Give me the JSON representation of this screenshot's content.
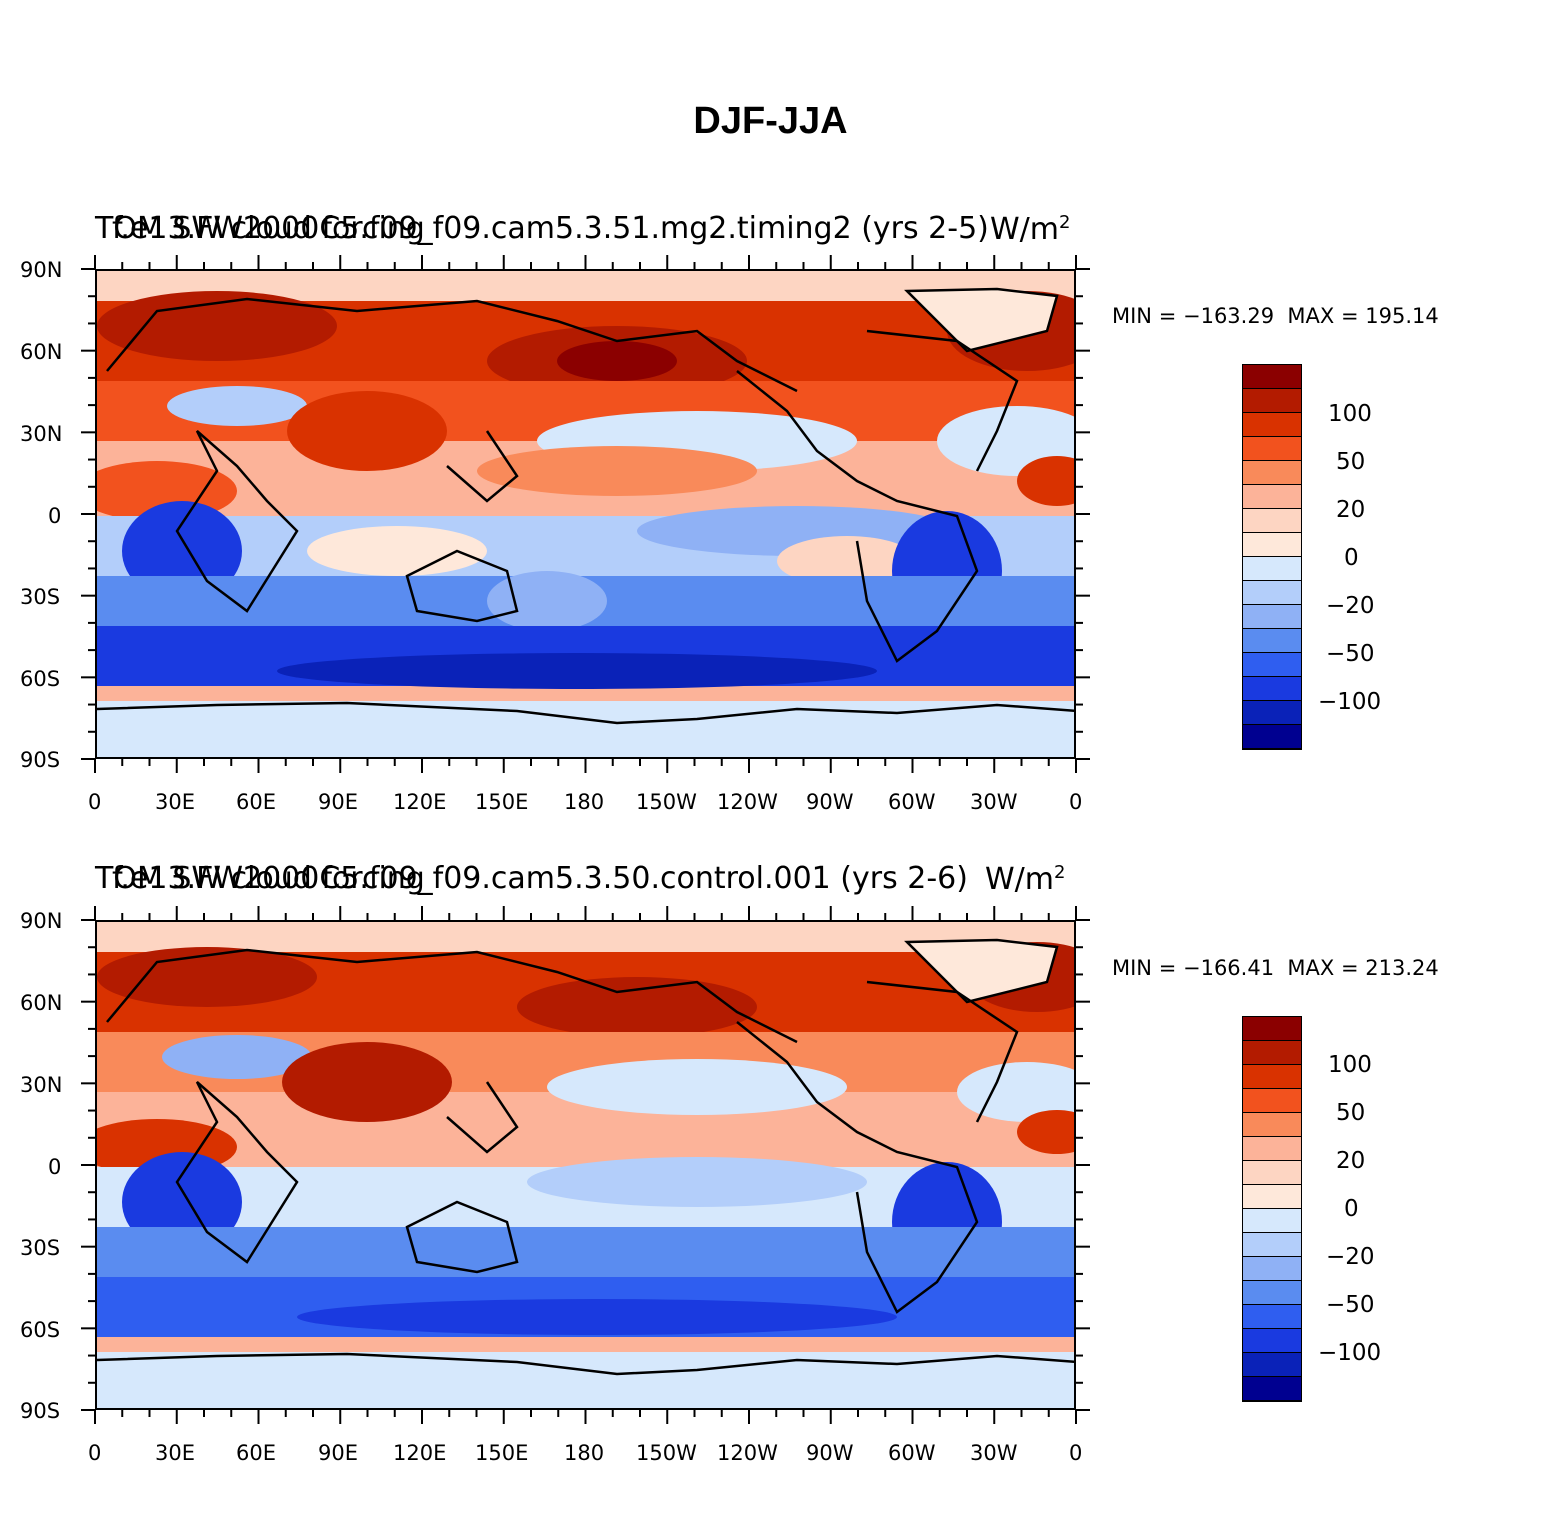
{
  "title": "DJF-JJA",
  "lon_ticks": [
    "0",
    "30E",
    "60E",
    "90E",
    "120E",
    "150E",
    "180",
    "150W",
    "120W",
    "90W",
    "60W",
    "30W",
    "0"
  ],
  "lat_ticks": [
    "90N",
    "60N",
    "30N",
    "0",
    "30S",
    "60S",
    "90S"
  ],
  "colorbar": {
    "colors": [
      "#8b0000",
      "#b31b00",
      "#d93200",
      "#f2521e",
      "#f98a5a",
      "#fcb399",
      "#fdd5c2",
      "#fee8da",
      "#d6e8fc",
      "#b3cefa",
      "#8fb1f5",
      "#5a8cf0",
      "#2f5ef0",
      "#1a3ae0",
      "#0a22b8",
      "#000090"
    ],
    "labels": [
      "100",
      "50",
      "20",
      "0",
      "−20",
      "−50",
      "−100"
    ]
  },
  "panels": [
    {
      "case_text": "f.e13.FW2000C5.f09_f09.cam5.3.51.mg2.timing2 (yrs 2-5)",
      "variable_text": "TOM SW cloud forcing",
      "units_text": "W/m",
      "units_sup": "2",
      "min_label": "MIN",
      "min_value": "−163.29",
      "max_label": "MAX",
      "max_value": "195.14"
    },
    {
      "case_text": "f.e13.FW2000C5.f09_f09.cam5.3.50.control.001 (yrs 2-6)",
      "variable_text": "TOM SW cloud forcing",
      "units_text": "W/m",
      "units_sup": "2",
      "min_label": "MIN",
      "min_value": "−166.41",
      "max_label": "MAX",
      "max_value": "213.24"
    }
  ]
}
